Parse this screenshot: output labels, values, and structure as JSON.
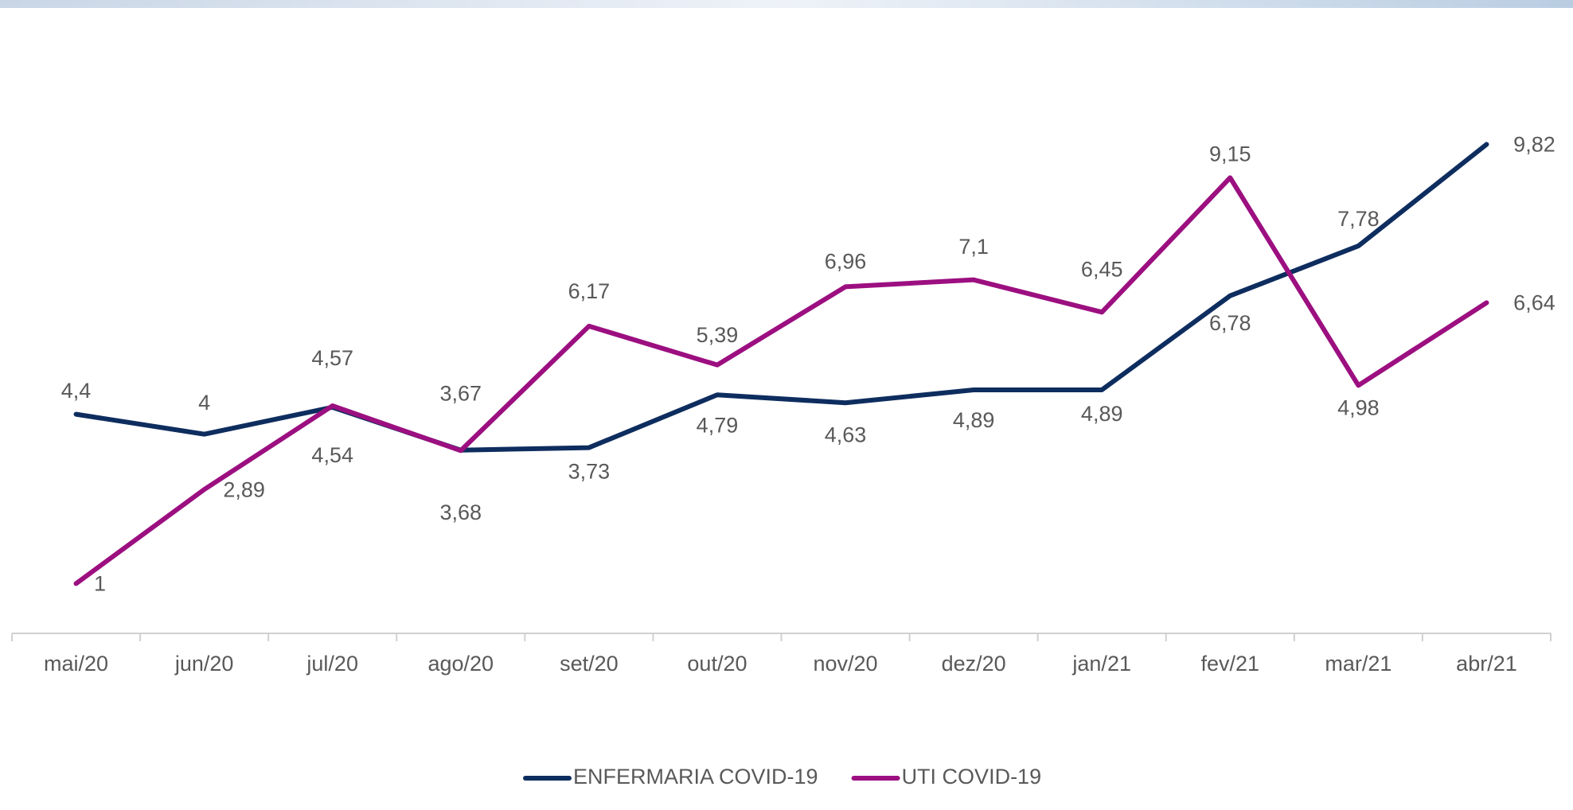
{
  "chart_data": {
    "type": "line",
    "categories": [
      "mai/20",
      "jun/20",
      "jul/20",
      "ago/20",
      "set/20",
      "out/20",
      "nov/20",
      "dez/20",
      "jan/21",
      "fev/21",
      "mar/21",
      "abr/21"
    ],
    "series": [
      {
        "name": "ENFERMARIA COVID-19",
        "color": "#0e2d5f",
        "values": [
          4.4,
          4,
          4.54,
          3.68,
          3.73,
          4.79,
          4.63,
          4.89,
          4.89,
          6.78,
          7.78,
          9.82
        ],
        "value_labels": [
          "4,4",
          "4",
          "4,54",
          "3,68",
          "3,73",
          "4,79",
          "4,63",
          "4,89",
          "4,89",
          "6,78",
          "7,78",
          "9,82"
        ]
      },
      {
        "name": "UTI COVID-19",
        "color": "#9c0f80",
        "values": [
          1,
          2.89,
          4.57,
          3.67,
          6.17,
          5.39,
          6.96,
          7.1,
          6.45,
          9.15,
          4.98,
          6.64
        ],
        "value_labels": [
          "1",
          "2,89",
          "4,57",
          "3,67",
          "6,17",
          "5,39",
          "6,96",
          "7,1",
          "6,45",
          "9,15",
          "4,98",
          "6,64"
        ]
      }
    ],
    "ylim": [
      0,
      12
    ],
    "legend": "bottom"
  }
}
